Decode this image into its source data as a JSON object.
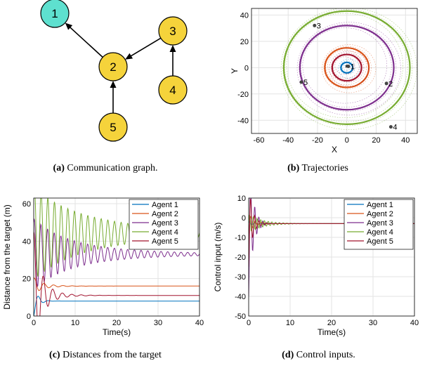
{
  "graph": {
    "caption_label": "(a)",
    "caption_text": "Communication graph.",
    "nodes": [
      {
        "id": "1",
        "color": "#5ee0cf"
      },
      {
        "id": "2",
        "color": "#f5d33b"
      },
      {
        "id": "3",
        "color": "#f5d33b"
      },
      {
        "id": "4",
        "color": "#f5d33b"
      },
      {
        "id": "5",
        "color": "#f5d33b"
      }
    ],
    "edges": [
      [
        "2",
        "1"
      ],
      [
        "3",
        "2"
      ],
      [
        "4",
        "3"
      ],
      [
        "5",
        "2"
      ]
    ]
  },
  "chart_data": [
    {
      "type": "line",
      "caption_label": "(b)",
      "caption_text": "Trajectories",
      "xlabel": "X",
      "ylabel": "Y",
      "xlim": [
        -65,
        48
      ],
      "ylim": [
        -50,
        45
      ],
      "xticks": [
        -60,
        -40,
        -20,
        0,
        20,
        40
      ],
      "yticks": [
        -40,
        -20,
        0,
        20,
        40
      ],
      "grid": true,
      "orbits": [
        {
          "name": "1",
          "radius": 4,
          "color": "#0072bd"
        },
        {
          "name": "2",
          "radius": 15,
          "color": "#d95319"
        },
        {
          "name": "3",
          "radius": 32,
          "color": "#7e2f8e"
        },
        {
          "name": "4",
          "radius": 43,
          "color": "#77ac30"
        },
        {
          "name": "5",
          "radius": 10,
          "color": "#a2142f"
        }
      ],
      "agent_labels": [
        {
          "text": "1",
          "x": 1,
          "y": 1
        },
        {
          "text": "2",
          "x": 27,
          "y": -12
        },
        {
          "text": "3",
          "x": -22,
          "y": 32
        },
        {
          "text": "4",
          "x": 30,
          "y": -45
        },
        {
          "text": "5",
          "x": -31,
          "y": -11
        }
      ]
    },
    {
      "type": "line",
      "caption_label": "(c)",
      "caption_text": "Distances from the target",
      "xlabel": "Time(s)",
      "ylabel": "Distance from the target (m)",
      "xlim": [
        0,
        40
      ],
      "ylim": [
        0,
        63
      ],
      "xticks": [
        0,
        10,
        20,
        30,
        40
      ],
      "yticks": [
        0,
        20,
        40,
        60
      ],
      "grid": true,
      "legend_position": "top-right",
      "series": [
        {
          "name": "Agent 1",
          "color": "#0072bd",
          "final": 8,
          "start": 0,
          "amp": 0,
          "period": 2.4,
          "decay": 1
        },
        {
          "name": "Agent 2",
          "color": "#d95319",
          "final": 16,
          "start": 20,
          "amp": 6,
          "period": 2.2,
          "decay": 0.6
        },
        {
          "name": "Agent 3",
          "color": "#7e2f8e",
          "final": 33,
          "start": 50,
          "amp": 9,
          "period": 1.6,
          "decay": 0.12
        },
        {
          "name": "Agent 4",
          "color": "#77ac30",
          "final": 44,
          "start": 63,
          "amp": 16,
          "period": 1.6,
          "decay": 0.1
        },
        {
          "name": "Agent 5",
          "color": "#a2142f",
          "final": 11,
          "start": 45,
          "amp": 18,
          "period": 2.2,
          "decay": 0.55
        }
      ]
    },
    {
      "type": "line",
      "caption_label": "(d)",
      "caption_text": "Control inputs.",
      "xlabel": "Time(s)",
      "ylabel": "Control input (m/s)",
      "xlim": [
        0,
        40
      ],
      "ylim": [
        -50,
        10
      ],
      "xticks": [
        0,
        10,
        20,
        30,
        40
      ],
      "yticks": [
        -50,
        -40,
        -30,
        -20,
        -10,
        0,
        10
      ],
      "grid": true,
      "legend_position": "top-right",
      "series": [
        {
          "name": "Agent 1",
          "color": "#0072bd",
          "final": -3,
          "start": -2,
          "amp": 0.5,
          "period": 1.5,
          "decay": 1
        },
        {
          "name": "Agent 2",
          "color": "#d95319",
          "final": -3,
          "start": -8,
          "amp": 5,
          "period": 1.2,
          "decay": 0.9
        },
        {
          "name": "Agent 3",
          "color": "#7e2f8e",
          "final": -3,
          "start": -40,
          "amp": 8,
          "period": 1.0,
          "decay": 1.0
        },
        {
          "name": "Agent 4",
          "color": "#77ac30",
          "final": -3,
          "start": -3,
          "amp": 12,
          "period": 0.9,
          "decay": 0.6
        },
        {
          "name": "Agent 5",
          "color": "#a2142f",
          "final": -3,
          "start": -25,
          "amp": 8,
          "period": 1.0,
          "decay": 1.2
        }
      ]
    }
  ]
}
